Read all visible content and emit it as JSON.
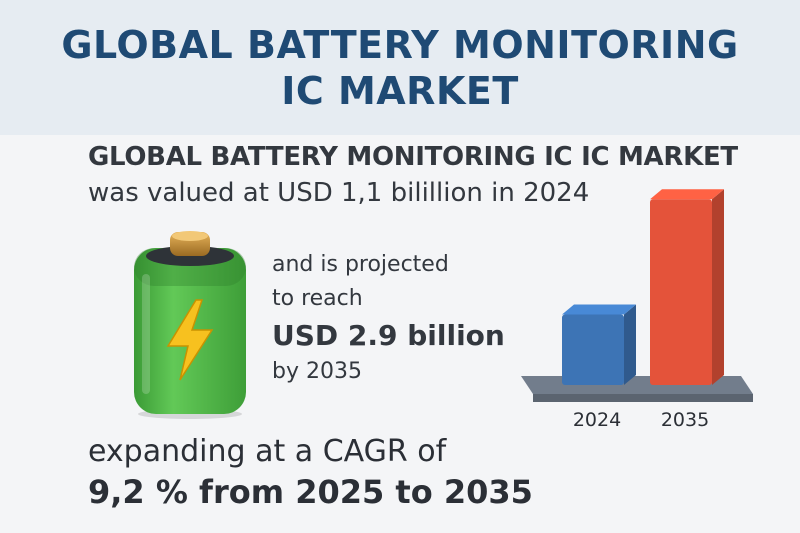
{
  "header": {
    "title_line1": "GLOBAL BATTERY MONITORING",
    "title_line2": "IC MARKET"
  },
  "intro": {
    "line1": "GLOBAL BATTERY MONITORING IC IC MARKET",
    "line2": "was valued at USD 1,1 bilillion in 2024"
  },
  "projection": {
    "line1": "and is projected",
    "line2": "to reach",
    "line3": "USD 2.9 billion",
    "line4": "by 2035"
  },
  "cagr": {
    "line1": "expanding at a CAGR of",
    "line2": "9,2 % from 2025 to 2035"
  },
  "icons": {
    "battery": "battery-icon",
    "bolt": "lightning-bolt-icon"
  },
  "colors": {
    "title": "#1f4a74",
    "battery_green": "#4bb543",
    "bolt_yellow": "#f7c11f",
    "bar_2024": "#3d74b5",
    "bar_2035": "#e4533a",
    "base": "#5b6470"
  },
  "chart_data": {
    "type": "bar",
    "categories": [
      "2024",
      "2035"
    ],
    "values": [
      1.1,
      2.9
    ],
    "title": "",
    "xlabel": "",
    "ylabel": "",
    "ylim": [
      0,
      3.2
    ],
    "grid": false,
    "bar_colors": [
      "#3d74b5",
      "#e4533a"
    ]
  }
}
